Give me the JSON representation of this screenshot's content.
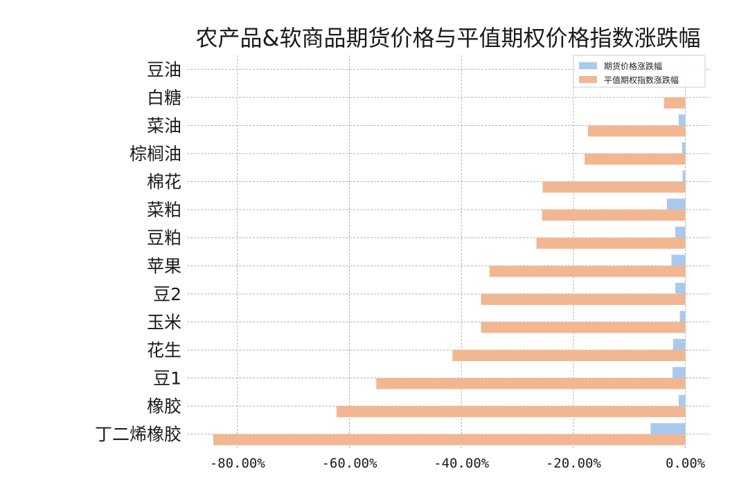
{
  "chart_data": {
    "type": "bar",
    "orientation": "horizontal",
    "title": "农产品&软商品期货价格与平值期权价格指数涨跌幅",
    "xlabel": "",
    "ylabel": "",
    "categories": [
      "豆油",
      "白糖",
      "菜油",
      "棕榈油",
      "棉花",
      "菜粕",
      "豆粕",
      "苹果",
      "豆2",
      "玉米",
      "花生",
      "豆1",
      "橡胶",
      "丁二烯橡胶"
    ],
    "series": [
      {
        "name": "期货价格涨跌幅",
        "color": "#a9c9ee",
        "values": [
          0.0,
          0.0,
          -1.2,
          -0.6,
          -0.5,
          -3.3,
          -1.8,
          -2.5,
          -1.8,
          -1.0,
          -2.2,
          -2.3,
          -1.2,
          -6.2
        ]
      },
      {
        "name": "平值期权指数涨跌幅",
        "color": "#f2b791",
        "values": [
          0.0,
          -3.8,
          -17.4,
          -18.0,
          -25.5,
          -25.6,
          -26.6,
          -35.0,
          -36.5,
          -36.5,
          -41.6,
          -55.2,
          -62.3,
          -84.3
        ]
      }
    ],
    "xlim": [
      -89,
      4.5
    ],
    "xticks": [
      -80,
      -60,
      -40,
      -20,
      0
    ],
    "xtick_labels": [
      "-80.00%",
      "-60.00%",
      "-40.00%",
      "-20.00%",
      "0.00%"
    ],
    "grid": true,
    "legend_position": "top-right"
  }
}
